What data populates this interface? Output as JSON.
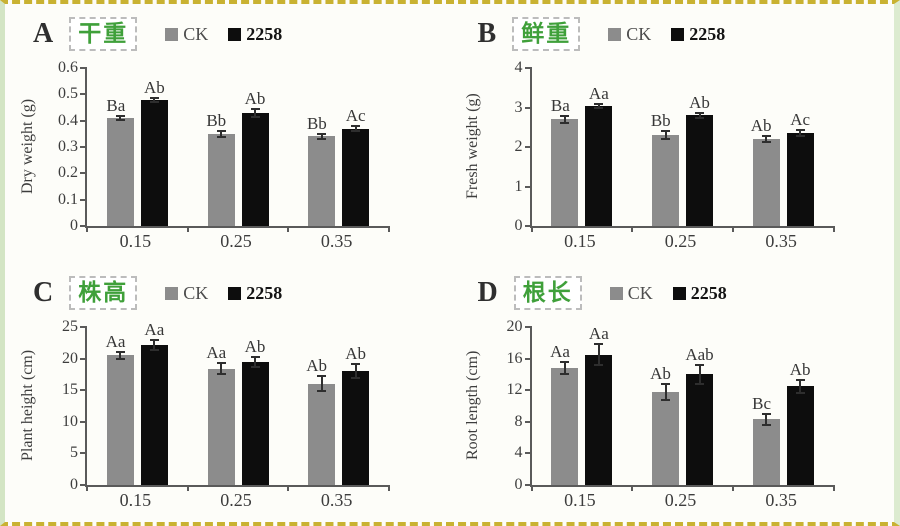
{
  "theme": {
    "title_green": "#3fa03a",
    "ck_gray": "#8c8c8c",
    "bar_black": "#0d0d0d",
    "axis_color": "#5a5a5a",
    "frame_dash_color": "#c9b232",
    "frame_side_color": "#d3e5c4"
  },
  "legend": {
    "items": [
      {
        "label": "CK",
        "color": "#8c8c8c"
      },
      {
        "label": "2258",
        "color": "#0d0d0d"
      }
    ]
  },
  "chart_data": [
    {
      "type": "bar",
      "panel": "A",
      "title_cn": "干重",
      "ylabel": "Dry weight (g)",
      "ylim": [
        0,
        0.6
      ],
      "yticks": [
        0,
        0.1,
        0.2,
        0.3,
        0.4,
        0.5,
        0.6
      ],
      "ytick_labels": [
        "0",
        "0.1",
        "0.2",
        "0.3",
        "0.4",
        "0.5",
        "0.6"
      ],
      "categories": [
        "0.15",
        "0.25",
        "0.35"
      ],
      "legend_position": "top",
      "grid": false,
      "series": [
        {
          "name": "CK",
          "color": "#8c8c8c",
          "values": [
            0.41,
            0.35,
            0.34
          ],
          "errors": [
            0.008,
            0.012,
            0.008
          ],
          "letters": [
            "Ba",
            "Bb",
            "Bb"
          ]
        },
        {
          "name": "2258",
          "color": "#0d0d0d",
          "values": [
            0.48,
            0.43,
            0.37
          ],
          "errors": [
            0.008,
            0.015,
            0.008
          ],
          "letters": [
            "Ab",
            "Ab",
            "Ac"
          ]
        }
      ]
    },
    {
      "type": "bar",
      "panel": "B",
      "title_cn": "鲜重",
      "ylabel": "Fresh weight (g)",
      "ylim": [
        0,
        4
      ],
      "yticks": [
        0,
        1,
        2,
        3,
        4
      ],
      "ytick_labels": [
        "0",
        "1",
        "2",
        "3",
        "4"
      ],
      "categories": [
        "0.15",
        "0.25",
        "0.35"
      ],
      "legend_position": "top",
      "grid": false,
      "series": [
        {
          "name": "CK",
          "color": "#8c8c8c",
          "values": [
            2.7,
            2.3,
            2.2
          ],
          "errors": [
            0.09,
            0.1,
            0.07
          ],
          "letters": [
            "Ba",
            "Bb",
            "Ab"
          ]
        },
        {
          "name": "2258",
          "color": "#0d0d0d",
          "values": [
            3.05,
            2.8,
            2.35
          ],
          "errors": [
            0.05,
            0.06,
            0.08
          ],
          "letters": [
            "Aa",
            "Ab",
            "Ac"
          ]
        }
      ]
    },
    {
      "type": "bar",
      "panel": "C",
      "title_cn": "株高",
      "ylabel": "Plant height (cm)",
      "ylim": [
        0,
        25
      ],
      "yticks": [
        0,
        5,
        10,
        15,
        20,
        25
      ],
      "ytick_labels": [
        "0",
        "5",
        "10",
        "15",
        "20",
        "25"
      ],
      "categories": [
        "0.15",
        "0.25",
        "0.35"
      ],
      "legend_position": "top",
      "grid": false,
      "series": [
        {
          "name": "CK",
          "color": "#8c8c8c",
          "values": [
            20.5,
            18.4,
            16.0
          ],
          "errors": [
            0.6,
            0.9,
            1.2
          ],
          "letters": [
            "Aa",
            "Aa",
            "Ab"
          ]
        },
        {
          "name": "2258",
          "color": "#0d0d0d",
          "values": [
            22.2,
            19.5,
            18.0
          ],
          "errors": [
            0.8,
            0.8,
            1.1
          ],
          "letters": [
            "Aa",
            "Ab",
            "Ab"
          ]
        }
      ]
    },
    {
      "type": "bar",
      "panel": "D",
      "title_cn": "根长",
      "ylabel": "Root length (cm)",
      "ylim": [
        0,
        20
      ],
      "yticks": [
        0,
        4,
        8,
        12,
        16,
        20
      ],
      "ytick_labels": [
        "0",
        "4",
        "8",
        "12",
        "16",
        "20"
      ],
      "categories": [
        "0.15",
        "0.25",
        "0.35"
      ],
      "legend_position": "top",
      "grid": false,
      "series": [
        {
          "name": "CK",
          "color": "#8c8c8c",
          "values": [
            14.8,
            11.8,
            8.3
          ],
          "errors": [
            0.8,
            1.0,
            0.7
          ],
          "letters": [
            "Aa",
            "Ab",
            "Bc"
          ]
        },
        {
          "name": "2258",
          "color": "#0d0d0d",
          "values": [
            16.5,
            14.0,
            12.5
          ],
          "errors": [
            1.3,
            1.2,
            0.8
          ],
          "letters": [
            "Aa",
            "Aab",
            "Ab"
          ]
        }
      ]
    }
  ]
}
